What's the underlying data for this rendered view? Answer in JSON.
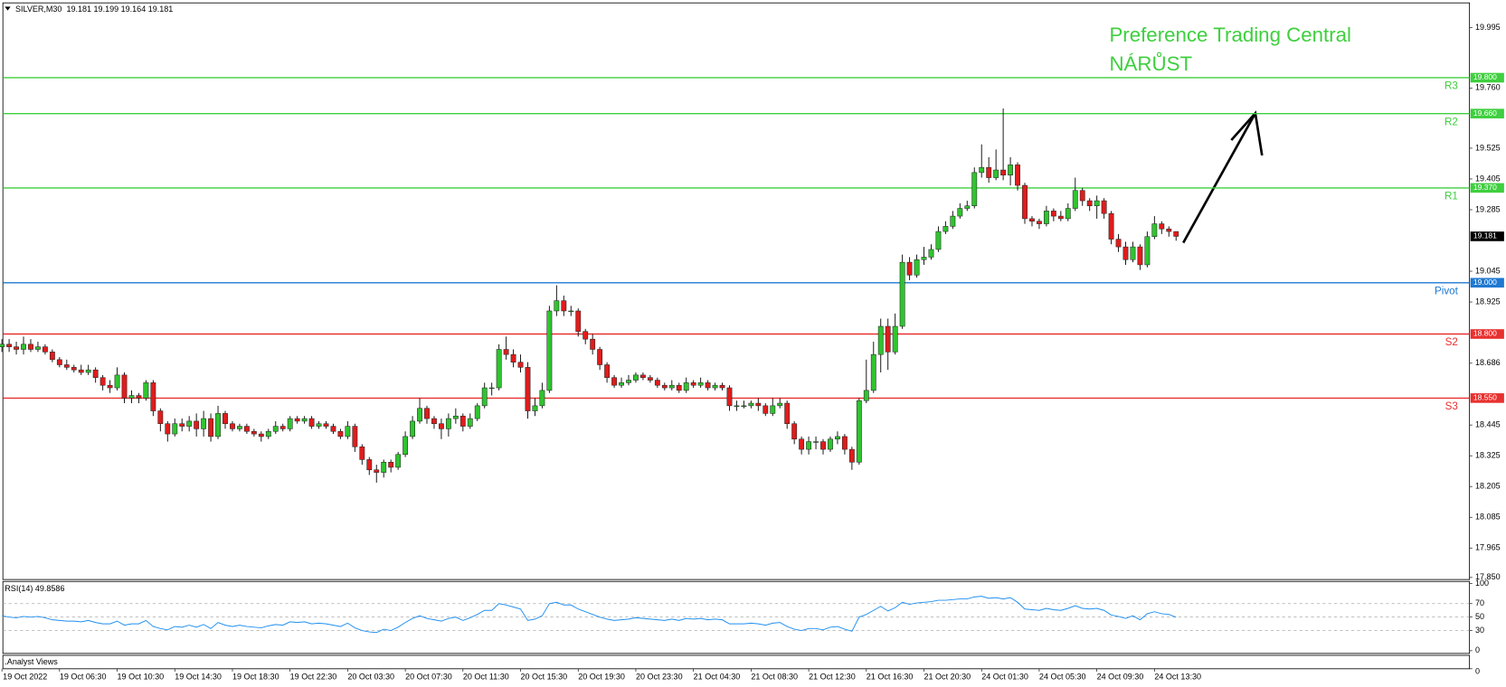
{
  "chart_data": [
    {
      "type": "candlestick",
      "title": "SILVER,M30  19.181 19.199 19.164 19.181",
      "annotations": [
        "Preference Trading Central",
        "NÁRŮST"
      ],
      "categories": [
        "19 Oct 2022",
        null,
        null,
        null,
        null,
        null,
        null,
        null,
        "19 Oct 06:30",
        null,
        null,
        null,
        null,
        null,
        null,
        null,
        "19 Oct 10:30",
        null,
        null,
        null,
        null,
        null,
        null,
        null,
        "19 Oct 14:30",
        null,
        null,
        null,
        null,
        null,
        null,
        null,
        "19 Oct 18:30",
        null,
        null,
        null,
        null,
        null,
        null,
        null,
        "19 Oct 22:30",
        null,
        null,
        null,
        null,
        null,
        null,
        null,
        "20 Oct 03:30",
        null,
        null,
        null,
        null,
        null,
        null,
        null,
        "20 Oct 07:30",
        null,
        null,
        null,
        null,
        null,
        null,
        null,
        "20 Oct 11:30",
        null,
        null,
        null,
        null,
        null,
        null,
        null,
        "20 Oct 15:30",
        null,
        null,
        null,
        null,
        null,
        null,
        null,
        "20 Oct 19:30",
        null,
        null,
        null,
        null,
        null,
        null,
        null,
        "20 Oct 23:30",
        null,
        null,
        null,
        null,
        null,
        null,
        null,
        "21 Oct 04:30",
        null,
        null,
        null,
        null,
        null,
        null,
        null,
        "21 Oct 08:30",
        null,
        null,
        null,
        null,
        null,
        null,
        null,
        "21 Oct 12:30",
        null,
        null,
        null,
        null,
        null,
        null,
        null,
        "21 Oct 16:30",
        null,
        null,
        null,
        null,
        null,
        null,
        null,
        "21 Oct 20:30",
        null,
        null,
        null,
        null,
        null,
        null,
        null,
        "24 Oct 01:30",
        null,
        null,
        null,
        null,
        null,
        null,
        null,
        "24 Oct 05:30",
        null,
        null,
        null,
        null,
        null,
        null,
        null,
        "24 Oct 09:30",
        null,
        null,
        null,
        null,
        null,
        null,
        null,
        "24 Oct 13:30",
        null,
        null,
        null
      ],
      "open": [
        18.75,
        18.76,
        18.75,
        18.74,
        18.76,
        18.74,
        18.75,
        18.73,
        18.7,
        18.68,
        18.67,
        18.66,
        18.65,
        18.66,
        18.63,
        18.6,
        18.59,
        18.64,
        18.55,
        18.56,
        18.55,
        18.61,
        18.5,
        18.45,
        18.41,
        18.45,
        18.44,
        18.46,
        18.43,
        18.47,
        18.4,
        18.49,
        18.45,
        18.43,
        18.44,
        18.42,
        18.41,
        18.4,
        18.42,
        18.44,
        18.43,
        18.47,
        18.46,
        18.47,
        18.44,
        18.45,
        18.44,
        18.42,
        18.4,
        18.44,
        18.36,
        18.31,
        18.27,
        18.26,
        18.3,
        18.28,
        18.33,
        18.4,
        18.46,
        18.51,
        18.47,
        18.45,
        18.43,
        18.47,
        18.48,
        18.44,
        18.47,
        18.52,
        18.59,
        18.59,
        18.74,
        18.72,
        18.69,
        18.67,
        18.5,
        18.52,
        18.58,
        18.89,
        18.93,
        18.89,
        18.89,
        18.81,
        18.78,
        18.74,
        18.68,
        18.63,
        18.6,
        18.61,
        18.62,
        18.64,
        18.63,
        18.62,
        18.6,
        18.59,
        18.6,
        18.58,
        18.61,
        18.6,
        18.61,
        18.59,
        18.6,
        18.59,
        18.52,
        18.52,
        18.52,
        18.53,
        18.52,
        18.49,
        18.52,
        18.53,
        18.45,
        18.39,
        18.35,
        18.38,
        18.38,
        18.35,
        18.39,
        18.4,
        18.35,
        18.3,
        18.54,
        18.58,
        18.72,
        18.83,
        18.73,
        18.83,
        19.08,
        19.03,
        19.09,
        19.1,
        19.13,
        19.2,
        19.22,
        19.26,
        19.29,
        19.3,
        19.43,
        19.45,
        19.41,
        19.44,
        19.42,
        19.46,
        19.38,
        19.25,
        19.24,
        19.23,
        19.28,
        19.26,
        19.25,
        19.29,
        19.36,
        19.32,
        19.3,
        19.32,
        19.27,
        19.17,
        19.14,
        19.09,
        19.14,
        19.07,
        19.18,
        19.23,
        19.21,
        19.2
      ],
      "high": [
        18.78,
        18.78,
        18.77,
        18.79,
        18.78,
        18.77,
        18.76,
        18.74,
        18.71,
        18.7,
        18.68,
        18.68,
        18.68,
        18.67,
        18.64,
        18.62,
        18.67,
        18.65,
        18.58,
        18.57,
        18.62,
        18.62,
        18.51,
        18.46,
        18.47,
        18.47,
        18.48,
        18.49,
        18.5,
        18.49,
        18.52,
        18.5,
        18.46,
        18.45,
        18.45,
        18.43,
        18.42,
        18.43,
        18.46,
        18.45,
        18.48,
        18.48,
        18.48,
        18.48,
        18.46,
        18.46,
        18.45,
        18.43,
        18.46,
        18.45,
        18.37,
        18.32,
        18.29,
        18.31,
        18.31,
        18.34,
        18.42,
        18.48,
        18.55,
        18.52,
        18.48,
        18.47,
        18.49,
        18.51,
        18.49,
        18.49,
        18.53,
        18.61,
        18.61,
        18.76,
        18.79,
        18.74,
        18.72,
        18.69,
        18.55,
        18.61,
        18.91,
        18.99,
        18.95,
        18.91,
        18.9,
        18.82,
        18.8,
        18.75,
        18.69,
        18.64,
        18.63,
        18.64,
        18.65,
        18.65,
        18.64,
        18.63,
        18.61,
        18.62,
        18.61,
        18.63,
        18.62,
        18.63,
        18.62,
        18.61,
        18.61,
        18.6,
        18.54,
        18.54,
        18.54,
        18.55,
        18.53,
        18.55,
        18.55,
        18.54,
        18.46,
        18.4,
        18.4,
        18.4,
        18.39,
        18.4,
        18.42,
        18.41,
        18.36,
        18.55,
        18.7,
        18.77,
        18.86,
        18.86,
        18.88,
        19.11,
        19.1,
        19.11,
        19.14,
        19.15,
        19.22,
        19.24,
        19.28,
        19.31,
        19.32,
        19.45,
        19.54,
        19.49,
        19.52,
        19.68,
        19.49,
        19.47,
        19.39,
        19.26,
        19.25,
        19.3,
        19.29,
        19.28,
        19.31,
        19.41,
        19.37,
        19.33,
        19.34,
        19.33,
        19.28,
        19.19,
        19.16,
        19.16,
        19.15,
        19.2,
        19.26,
        19.24,
        19.22,
        19.199
      ],
      "low": [
        18.73,
        18.73,
        18.72,
        18.72,
        18.73,
        18.73,
        18.72,
        18.69,
        18.67,
        18.66,
        18.65,
        18.64,
        18.64,
        18.61,
        18.58,
        18.57,
        18.58,
        18.53,
        18.53,
        18.53,
        18.54,
        18.48,
        18.42,
        18.38,
        18.4,
        18.42,
        18.42,
        18.4,
        18.4,
        18.38,
        18.39,
        18.43,
        18.42,
        18.42,
        18.41,
        18.4,
        18.38,
        18.39,
        18.41,
        18.42,
        18.42,
        18.45,
        18.45,
        18.43,
        18.43,
        18.43,
        18.41,
        18.39,
        18.39,
        18.34,
        18.29,
        18.25,
        18.22,
        18.24,
        18.26,
        18.27,
        18.32,
        18.39,
        18.45,
        18.45,
        18.43,
        18.39,
        18.4,
        18.45,
        18.42,
        18.43,
        18.46,
        18.51,
        18.56,
        18.58,
        18.7,
        18.67,
        18.65,
        18.47,
        18.48,
        18.51,
        18.57,
        18.87,
        18.87,
        18.87,
        18.79,
        18.76,
        18.72,
        18.66,
        18.61,
        18.59,
        18.59,
        18.6,
        18.61,
        18.62,
        18.61,
        18.59,
        18.58,
        18.58,
        18.57,
        18.57,
        18.59,
        18.59,
        18.58,
        18.58,
        18.58,
        18.5,
        18.5,
        18.51,
        18.51,
        18.5,
        18.48,
        18.48,
        18.51,
        18.43,
        18.37,
        18.33,
        18.33,
        18.35,
        18.33,
        18.34,
        18.37,
        18.33,
        18.27,
        18.29,
        18.53,
        18.57,
        18.65,
        18.66,
        18.72,
        18.82,
        19.01,
        19.02,
        19.07,
        19.09,
        19.12,
        19.19,
        19.21,
        19.25,
        19.28,
        19.29,
        19.41,
        19.39,
        19.4,
        19.4,
        19.38,
        19.36,
        19.23,
        19.22,
        19.21,
        19.22,
        19.24,
        19.24,
        19.24,
        19.28,
        19.3,
        19.28,
        19.25,
        19.25,
        19.15,
        19.12,
        19.07,
        19.08,
        19.05,
        19.06,
        19.17,
        19.19,
        19.18,
        19.164
      ],
      "close": [
        18.76,
        18.75,
        18.74,
        18.76,
        18.74,
        18.75,
        18.73,
        18.7,
        18.68,
        18.67,
        18.66,
        18.65,
        18.66,
        18.63,
        18.6,
        18.59,
        18.64,
        18.55,
        18.56,
        18.55,
        18.61,
        18.5,
        18.45,
        18.41,
        18.45,
        18.44,
        18.46,
        18.43,
        18.47,
        18.4,
        18.49,
        18.45,
        18.43,
        18.44,
        18.42,
        18.41,
        18.4,
        18.42,
        18.44,
        18.43,
        18.47,
        18.46,
        18.47,
        18.44,
        18.45,
        18.44,
        18.42,
        18.4,
        18.44,
        18.36,
        18.31,
        18.27,
        18.26,
        18.3,
        18.28,
        18.33,
        18.4,
        18.46,
        18.51,
        18.47,
        18.45,
        18.43,
        18.47,
        18.48,
        18.44,
        18.47,
        18.52,
        18.59,
        18.59,
        18.74,
        18.72,
        18.69,
        18.67,
        18.5,
        18.52,
        18.58,
        18.89,
        18.93,
        18.89,
        18.89,
        18.81,
        18.78,
        18.74,
        18.68,
        18.63,
        18.6,
        18.61,
        18.62,
        18.64,
        18.63,
        18.62,
        18.6,
        18.59,
        18.6,
        18.58,
        18.61,
        18.6,
        18.61,
        18.59,
        18.6,
        18.59,
        18.52,
        18.52,
        18.52,
        18.53,
        18.52,
        18.49,
        18.52,
        18.53,
        18.45,
        18.39,
        18.35,
        18.38,
        18.38,
        18.35,
        18.39,
        18.4,
        18.35,
        18.3,
        18.54,
        18.58,
        18.72,
        18.83,
        18.73,
        18.83,
        19.08,
        19.03,
        19.09,
        19.1,
        19.13,
        19.2,
        19.22,
        19.26,
        19.29,
        19.3,
        19.43,
        19.45,
        19.41,
        19.44,
        19.42,
        19.46,
        19.38,
        19.25,
        19.24,
        19.23,
        19.28,
        19.26,
        19.25,
        19.29,
        19.36,
        19.32,
        19.3,
        19.32,
        19.27,
        19.17,
        19.14,
        19.09,
        19.14,
        19.07,
        19.18,
        19.23,
        19.21,
        19.2,
        19.181
      ],
      "up_color": "#2fc42f",
      "down_color": "#e01c1c",
      "ylim": [
        17.842,
        20.092
      ],
      "yticks": [
        {
          "value": 17.85,
          "label": "17.850"
        },
        17.965,
        18.085,
        18.205,
        18.325,
        18.445,
        18.686,
        18.925,
        19.045,
        19.285,
        19.405,
        19.525,
        {
          "value": 19.76,
          "label": "19.760"
        },
        19.995
      ],
      "current_price": 19.181,
      "levels": [
        {
          "name": "R3",
          "value": 19.8,
          "label": "19.800",
          "color": "#3fcf3f"
        },
        {
          "name": "R2",
          "value": 19.66,
          "label": "19.660",
          "color": "#3fcf3f"
        },
        {
          "name": "R1",
          "value": 19.37,
          "label": "19.370",
          "color": "#3fcf3f"
        },
        {
          "name": "Pivot",
          "value": 19,
          "label": "19.000",
          "color": "#1f78d1"
        },
        {
          "name": "S2",
          "value": 18.8,
          "label": "18.800",
          "color": "#e8302e"
        },
        {
          "name": "S3",
          "value": 18.55,
          "label": "18.550",
          "color": "#e8302e"
        }
      ]
    },
    {
      "type": "line",
      "title": "RSI(14) 49.8586",
      "color": "#1e8ff0",
      "values": [
        52,
        50,
        49,
        51,
        50,
        51,
        49,
        46,
        45,
        44,
        44,
        43,
        45,
        42,
        40,
        40,
        44,
        38,
        40,
        40,
        45,
        36,
        33,
        31,
        36,
        35,
        38,
        35,
        39,
        33,
        42,
        38,
        36,
        38,
        36,
        35,
        34,
        37,
        39,
        38,
        43,
        42,
        43,
        40,
        41,
        40,
        38,
        36,
        41,
        34,
        30,
        28,
        27,
        32,
        30,
        35,
        42,
        48,
        52,
        48,
        46,
        44,
        48,
        50,
        45,
        49,
        54,
        60,
        60,
        70,
        68,
        65,
        62,
        45,
        47,
        52,
        70,
        72,
        68,
        68,
        62,
        58,
        54,
        50,
        47,
        45,
        46,
        47,
        49,
        48,
        47,
        46,
        45,
        47,
        45,
        48,
        47,
        48,
        46,
        47,
        46,
        40,
        40,
        40,
        41,
        40,
        38,
        41,
        42,
        36,
        32,
        30,
        33,
        33,
        31,
        35,
        36,
        32,
        29,
        50,
        54,
        60,
        66,
        59,
        64,
        72,
        69,
        71,
        72,
        73,
        75,
        75,
        76,
        77,
        77,
        80,
        81,
        78,
        79,
        77,
        79,
        72,
        62,
        61,
        60,
        63,
        61,
        60,
        63,
        67,
        63,
        62,
        63,
        60,
        53,
        51,
        48,
        52,
        46,
        55,
        58,
        55,
        54,
        49.8586
      ],
      "ylim": [
        -4,
        103
      ],
      "yticks": [
        100,
        70,
        50,
        30,
        0
      ],
      "levels": [
        70,
        50,
        30
      ]
    },
    {
      "type": "indicator",
      "title": ".Analyst Views",
      "yticks": [
        0
      ]
    }
  ]
}
